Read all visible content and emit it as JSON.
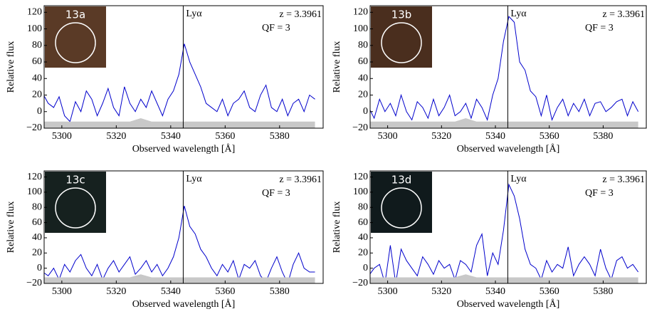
{
  "chart_data": [
    {
      "type": "line",
      "inset_label": "13a",
      "xlabel": "Observed wavelength [Å]",
      "ylabel": "Relative flux",
      "annotations": [
        "z = 3.3961",
        "QF = 3"
      ],
      "reference_line": {
        "x": 5344.6,
        "label": "Lyα"
      },
      "xlim": [
        5293.5,
        5396
      ],
      "ylim": [
        -20,
        128
      ],
      "xticks": [
        5300,
        5320,
        5340,
        5360,
        5380
      ],
      "yticks": [
        {
          "value": -20,
          "label": "−20"
        },
        0,
        20,
        40,
        60,
        80,
        100,
        120
      ],
      "x": [
        5293,
        5295,
        5297,
        5299,
        5301,
        5303,
        5305,
        5307,
        5309,
        5311,
        5313,
        5315,
        5317,
        5319,
        5321,
        5323,
        5325,
        5327,
        5329,
        5331,
        5333,
        5335,
        5337,
        5339,
        5341,
        5343,
        5345,
        5347,
        5349,
        5351,
        5353,
        5355,
        5357,
        5359,
        5361,
        5363,
        5365,
        5367,
        5369,
        5371,
        5373,
        5375,
        5377,
        5379,
        5381,
        5383,
        5385,
        5387,
        5389,
        5391,
        5393
      ],
      "series": [
        {
          "color": "#0000cc",
          "values": [
            22,
            10,
            5,
            18,
            -5,
            -12,
            12,
            0,
            25,
            15,
            -5,
            10,
            28,
            5,
            -5,
            30,
            10,
            0,
            15,
            5,
            25,
            10,
            -5,
            15,
            25,
            45,
            82,
            60,
            45,
            30,
            10,
            5,
            0,
            15,
            -5,
            10,
            15,
            25,
            5,
            0,
            20,
            32,
            5,
            0,
            15,
            -5,
            10,
            15,
            0,
            20,
            15
          ]
        },
        {
          "color": "#c8c8c8",
          "area": true,
          "values": [
            -12,
            -12,
            -12,
            -12,
            -12,
            -12,
            -12,
            -12,
            -12,
            -12,
            -12,
            -12,
            -12,
            -12,
            -12,
            -12,
            -12,
            -10,
            -8,
            -10,
            -12,
            -12,
            -12,
            -12,
            -12,
            -12,
            -12,
            -12,
            -12,
            -12,
            -12,
            -12,
            -12,
            -12,
            -12,
            -12,
            -12,
            -12,
            -12,
            -12,
            -12,
            -12,
            -12,
            -12,
            -12,
            -12,
            -12,
            -12,
            -12,
            -12,
            -12
          ]
        }
      ],
      "inset_color": "#5a3a26"
    },
    {
      "type": "line",
      "inset_label": "13b",
      "xlabel": "Observed wavelength [Å]",
      "ylabel": "Relative flux",
      "annotations": [
        "z = 3.3961",
        "QF = 3"
      ],
      "reference_line": {
        "x": 5344.6,
        "label": "Lyα"
      },
      "xlim": [
        5293.5,
        5396
      ],
      "ylim": [
        -20,
        128
      ],
      "xticks": [
        5300,
        5320,
        5340,
        5360,
        5380
      ],
      "yticks": [
        {
          "value": -20,
          "label": "−20"
        },
        0,
        20,
        40,
        60,
        80,
        100,
        120
      ],
      "x": [
        5293,
        5295,
        5297,
        5299,
        5301,
        5303,
        5305,
        5307,
        5309,
        5311,
        5313,
        5315,
        5317,
        5319,
        5321,
        5323,
        5325,
        5327,
        5329,
        5331,
        5333,
        5335,
        5337,
        5339,
        5341,
        5343,
        5345,
        5347,
        5349,
        5351,
        5353,
        5355,
        5357,
        5359,
        5361,
        5363,
        5365,
        5367,
        5369,
        5371,
        5373,
        5375,
        5377,
        5379,
        5381,
        5383,
        5385,
        5387,
        5389,
        5391,
        5393
      ],
      "series": [
        {
          "color": "#0000cc",
          "values": [
            5,
            -8,
            15,
            0,
            10,
            -5,
            20,
            0,
            -10,
            12,
            5,
            -8,
            15,
            -5,
            5,
            20,
            -5,
            0,
            10,
            -8,
            15,
            5,
            -10,
            20,
            40,
            85,
            115,
            108,
            60,
            50,
            25,
            18,
            -5,
            20,
            -10,
            5,
            15,
            -5,
            10,
            0,
            15,
            -5,
            10,
            12,
            0,
            5,
            12,
            15,
            -5,
            12,
            0
          ]
        },
        {
          "color": "#c8c8c8",
          "area": true,
          "values": [
            -12,
            -12,
            -12,
            -12,
            -12,
            -12,
            -12,
            -12,
            -12,
            -12,
            -12,
            -12,
            -12,
            -12,
            -12,
            -12,
            -12,
            -10,
            -8,
            -10,
            -12,
            -12,
            -12,
            -12,
            -12,
            -12,
            -12,
            -12,
            -12,
            -12,
            -12,
            -12,
            -12,
            -12,
            -12,
            -12,
            -12,
            -12,
            -12,
            -12,
            -12,
            -12,
            -12,
            -12,
            -12,
            -12,
            -12,
            -12,
            -12,
            -12,
            -12
          ]
        }
      ],
      "inset_color": "#4a2e1e"
    },
    {
      "type": "line",
      "inset_label": "13c",
      "xlabel": "Observed wavelength [Å]",
      "ylabel": "Relative flux",
      "annotations": [
        "z = 3.3961",
        "QF = 3"
      ],
      "reference_line": {
        "x": 5344.6,
        "label": "Lyα"
      },
      "xlim": [
        5293.5,
        5396
      ],
      "ylim": [
        -20,
        128
      ],
      "xticks": [
        5300,
        5320,
        5340,
        5360,
        5380
      ],
      "yticks": [
        {
          "value": -20,
          "label": "−20"
        },
        0,
        20,
        40,
        60,
        80,
        100,
        120
      ],
      "x": [
        5293,
        5295,
        5297,
        5299,
        5301,
        5303,
        5305,
        5307,
        5309,
        5311,
        5313,
        5315,
        5317,
        5319,
        5321,
        5323,
        5325,
        5327,
        5329,
        5331,
        5333,
        5335,
        5337,
        5339,
        5341,
        5343,
        5345,
        5347,
        5349,
        5351,
        5353,
        5355,
        5357,
        5359,
        5361,
        5363,
        5365,
        5367,
        5369,
        5371,
        5373,
        5375,
        5377,
        5379,
        5381,
        5383,
        5385,
        5387,
        5389,
        5391,
        5393
      ],
      "series": [
        {
          "color": "#0000cc",
          "values": [
            -5,
            -10,
            0,
            -15,
            5,
            -5,
            10,
            18,
            0,
            -10,
            5,
            -15,
            0,
            10,
            -5,
            5,
            15,
            -8,
            0,
            10,
            -5,
            5,
            -10,
            0,
            15,
            40,
            82,
            55,
            45,
            25,
            15,
            0,
            -10,
            5,
            -5,
            10,
            -15,
            5,
            0,
            10,
            -10,
            -18,
            0,
            15,
            -5,
            -20,
            5,
            20,
            0,
            -5,
            -5
          ]
        },
        {
          "color": "#c8c8c8",
          "area": true,
          "values": [
            -12,
            -12,
            -12,
            -12,
            -12,
            -12,
            -12,
            -12,
            -12,
            -12,
            -12,
            -12,
            -12,
            -12,
            -12,
            -12,
            -12,
            -10,
            -8,
            -10,
            -12,
            -12,
            -12,
            -12,
            -12,
            -12,
            -12,
            -12,
            -12,
            -12,
            -12,
            -12,
            -12,
            -12,
            -12,
            -12,
            -12,
            -12,
            -12,
            -12,
            -12,
            -12,
            -12,
            -12,
            -12,
            -12,
            -12,
            -12,
            -12,
            -12,
            -12
          ]
        }
      ],
      "inset_color": "#16211f"
    },
    {
      "type": "line",
      "inset_label": "13d",
      "xlabel": "Observed wavelength [Å]",
      "ylabel": "Relative flux",
      "annotations": [
        "z = 3.3961",
        "QF = 3"
      ],
      "reference_line": {
        "x": 5344.6,
        "label": "Lyα"
      },
      "xlim": [
        5293.5,
        5396
      ],
      "ylim": [
        -20,
        128
      ],
      "xticks": [
        5300,
        5320,
        5340,
        5360,
        5380
      ],
      "yticks": [
        {
          "value": -20,
          "label": "−20"
        },
        0,
        20,
        40,
        60,
        80,
        100,
        120
      ],
      "x": [
        5293,
        5295,
        5297,
        5299,
        5301,
        5303,
        5305,
        5307,
        5309,
        5311,
        5313,
        5315,
        5317,
        5319,
        5321,
        5323,
        5325,
        5327,
        5329,
        5331,
        5333,
        5335,
        5337,
        5339,
        5341,
        5343,
        5345,
        5347,
        5349,
        5351,
        5353,
        5355,
        5357,
        5359,
        5361,
        5363,
        5365,
        5367,
        5369,
        5371,
        5373,
        5375,
        5377,
        5379,
        5381,
        5383,
        5385,
        5387,
        5389,
        5391,
        5393
      ],
      "series": [
        {
          "color": "#0000cc",
          "values": [
            -10,
            0,
            5,
            -20,
            30,
            -20,
            25,
            10,
            0,
            -10,
            15,
            5,
            -8,
            10,
            0,
            5,
            -15,
            10,
            5,
            -5,
            30,
            45,
            -10,
            20,
            5,
            50,
            110,
            95,
            65,
            25,
            5,
            0,
            -15,
            10,
            -5,
            5,
            0,
            28,
            -10,
            5,
            15,
            5,
            -10,
            25,
            0,
            -15,
            10,
            15,
            0,
            5,
            -5
          ]
        },
        {
          "color": "#c8c8c8",
          "area": true,
          "values": [
            -12,
            -12,
            -12,
            -12,
            -12,
            -12,
            -12,
            -12,
            -12,
            -12,
            -12,
            -12,
            -12,
            -12,
            -12,
            -12,
            -12,
            -10,
            -8,
            -10,
            -12,
            -12,
            -12,
            -12,
            -12,
            -12,
            -12,
            -12,
            -12,
            -12,
            -12,
            -12,
            -12,
            -12,
            -12,
            -12,
            -12,
            -12,
            -12,
            -12,
            -12,
            -12,
            -12,
            -12,
            -12,
            -12,
            -12,
            -12,
            -12,
            -12,
            -12
          ]
        }
      ],
      "inset_color": "#101a1c"
    }
  ]
}
